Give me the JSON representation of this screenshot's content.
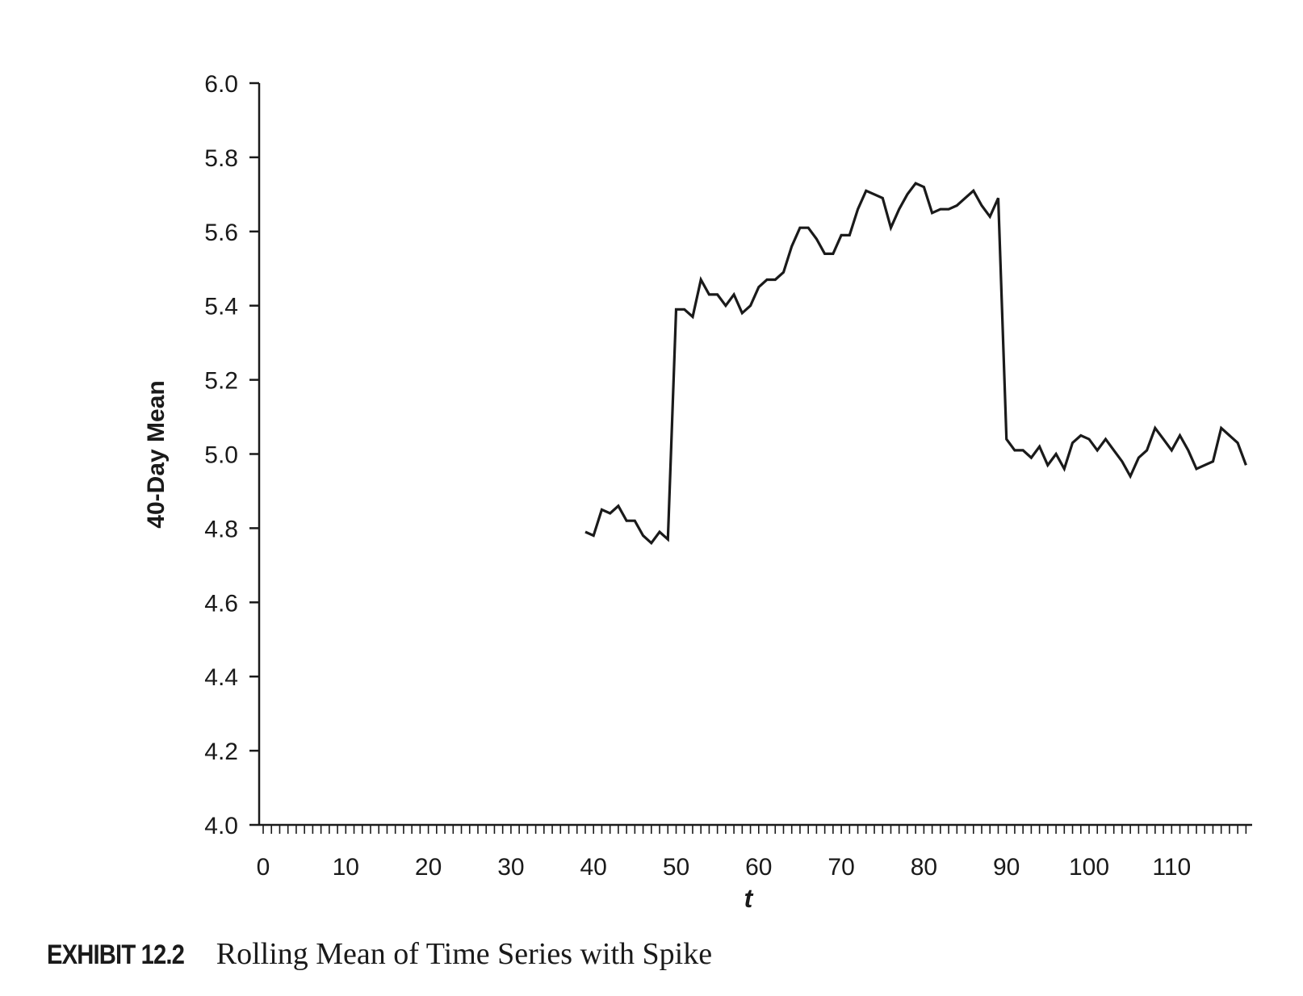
{
  "chart_data": {
    "type": "line",
    "title": "",
    "xlabel": "t",
    "ylabel": "40-Day Mean",
    "xlim": [
      0,
      120
    ],
    "ylim": [
      4.0,
      6.0
    ],
    "x_ticks": [
      0,
      10,
      20,
      30,
      40,
      50,
      60,
      70,
      80,
      90,
      100,
      110
    ],
    "y_ticks": [
      "4.0",
      "4.2",
      "4.4",
      "4.6",
      "4.8",
      "5.0",
      "5.2",
      "5.4",
      "5.6",
      "5.8",
      "6.0"
    ],
    "minor_tick_step": 1,
    "grid": false,
    "legend": "none",
    "series": [
      {
        "color": "#1a1a1a",
        "x": [
          39,
          40,
          41,
          42,
          43,
          44,
          45,
          46,
          47,
          48,
          49,
          50,
          51,
          52,
          53,
          54,
          55,
          56,
          57,
          58,
          59,
          60,
          61,
          62,
          63,
          64,
          65,
          66,
          67,
          68,
          69,
          70,
          71,
          72,
          73,
          74,
          75,
          76,
          77,
          78,
          79,
          80,
          81,
          82,
          83,
          84,
          85,
          86,
          87,
          88,
          89,
          90,
          91,
          92,
          93,
          94,
          95,
          96,
          97,
          98,
          99,
          100,
          101,
          102,
          103,
          104,
          105,
          106,
          107,
          108,
          109,
          110,
          111,
          112,
          113,
          114,
          115,
          116,
          117,
          118,
          119
        ],
        "values": [
          4.79,
          4.78,
          4.85,
          4.84,
          4.86,
          4.82,
          4.82,
          4.78,
          4.76,
          4.79,
          4.77,
          5.39,
          5.39,
          5.37,
          5.47,
          5.43,
          5.43,
          5.4,
          5.43,
          5.38,
          5.4,
          5.45,
          5.47,
          5.47,
          5.49,
          5.56,
          5.61,
          5.61,
          5.58,
          5.54,
          5.54,
          5.59,
          5.59,
          5.66,
          5.71,
          5.7,
          5.69,
          5.61,
          5.66,
          5.7,
          5.73,
          5.72,
          5.65,
          5.66,
          5.66,
          5.67,
          5.69,
          5.71,
          5.67,
          5.64,
          5.69,
          5.04,
          5.01,
          5.01,
          4.99,
          5.02,
          4.97,
          5.0,
          4.96,
          5.03,
          5.05,
          5.04,
          5.01,
          5.04,
          5.01,
          4.98,
          4.94,
          4.99,
          5.01,
          5.07,
          5.04,
          5.01,
          5.05,
          5.01,
          4.96,
          4.97,
          4.98,
          5.07,
          5.05,
          5.03,
          4.97
        ]
      }
    ]
  },
  "caption": {
    "label": "EXHIBIT 12.2",
    "text": "Rolling Mean of Time Series with Spike"
  }
}
